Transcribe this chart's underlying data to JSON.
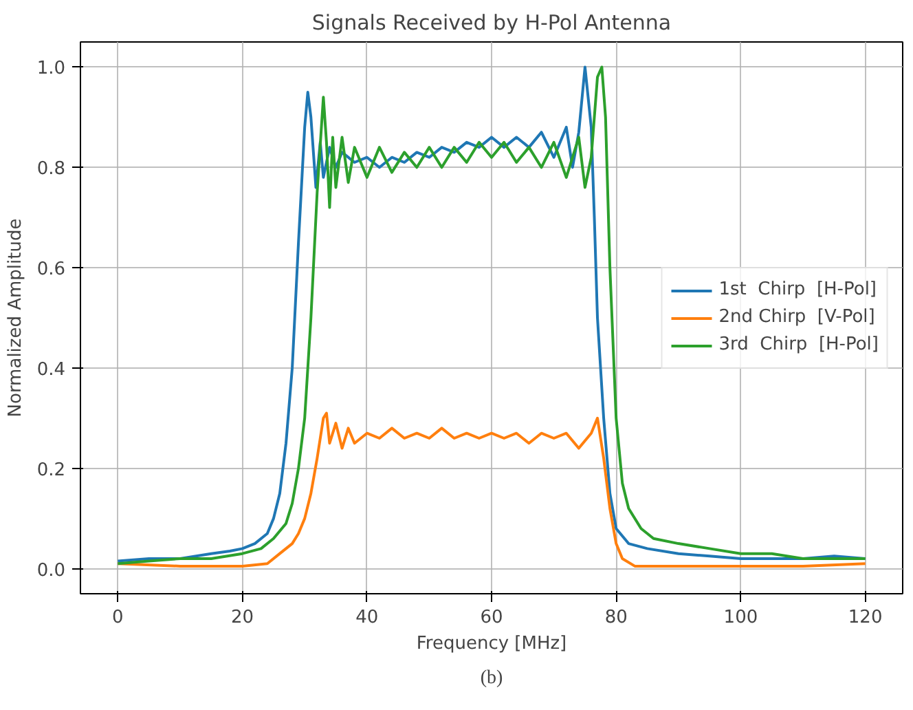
{
  "chart_data": {
    "type": "line",
    "title": "Signals Received by H-Pol Antenna",
    "xlabel": "Frequency [MHz]",
    "ylabel": "Normalized Amplitude",
    "annotations": [
      "(b)"
    ],
    "xlim": [
      -6,
      126
    ],
    "ylim": [
      -0.05,
      1.05
    ],
    "xticks": [
      0,
      20,
      40,
      60,
      80,
      100,
      120
    ],
    "yticks": [
      {
        "value": 0,
        "label": "0.0"
      },
      {
        "value": 0.2,
        "label": "0.2"
      },
      {
        "value": 0.4,
        "label": "0.4"
      },
      {
        "value": 0.6,
        "label": "0.6"
      },
      {
        "value": 0.8,
        "label": "0.8"
      },
      {
        "value": 1,
        "label": "1.0"
      }
    ],
    "grid": true,
    "legend": "right",
    "line_style": "solid",
    "marker": "none",
    "series": [
      {
        "name": "1st  Chirp  [H-Pol]",
        "color": "#1f77b4",
        "x": [
          0,
          5,
          10,
          15,
          18,
          20,
          22,
          24,
          25,
          26,
          27,
          28,
          29,
          30,
          30.5,
          31,
          31.8,
          32.5,
          33,
          34,
          35,
          36,
          38,
          40,
          42,
          44,
          46,
          48,
          50,
          52,
          54,
          56,
          58,
          60,
          62,
          64,
          66,
          68,
          70,
          72,
          73,
          74,
          75,
          76,
          76.5,
          77,
          78,
          79,
          80,
          82,
          85,
          90,
          95,
          100,
          105,
          110,
          115,
          120
        ],
        "values": [
          0.015,
          0.02,
          0.02,
          0.03,
          0.035,
          0.04,
          0.05,
          0.07,
          0.1,
          0.15,
          0.25,
          0.4,
          0.65,
          0.88,
          0.95,
          0.9,
          0.76,
          0.85,
          0.78,
          0.84,
          0.8,
          0.83,
          0.81,
          0.82,
          0.8,
          0.82,
          0.81,
          0.83,
          0.82,
          0.84,
          0.83,
          0.85,
          0.84,
          0.86,
          0.84,
          0.86,
          0.84,
          0.87,
          0.82,
          0.88,
          0.8,
          0.87,
          1.0,
          0.88,
          0.7,
          0.5,
          0.3,
          0.15,
          0.08,
          0.05,
          0.04,
          0.03,
          0.025,
          0.02,
          0.02,
          0.02,
          0.025,
          0.02
        ]
      },
      {
        "name": "2nd Chirp  [V-Pol]",
        "color": "#ff7f0e",
        "x": [
          0,
          10,
          20,
          24,
          26,
          28,
          29,
          30,
          31,
          32,
          33,
          33.5,
          34,
          35,
          36,
          37,
          38,
          40,
          42,
          44,
          46,
          48,
          50,
          52,
          54,
          56,
          58,
          60,
          62,
          64,
          66,
          68,
          70,
          72,
          74,
          76,
          77,
          78,
          79,
          80,
          81,
          83,
          90,
          100,
          110,
          120
        ],
        "values": [
          0.01,
          0.005,
          0.005,
          0.01,
          0.03,
          0.05,
          0.07,
          0.1,
          0.15,
          0.22,
          0.3,
          0.31,
          0.25,
          0.29,
          0.24,
          0.28,
          0.25,
          0.27,
          0.26,
          0.28,
          0.26,
          0.27,
          0.26,
          0.28,
          0.26,
          0.27,
          0.26,
          0.27,
          0.26,
          0.27,
          0.25,
          0.27,
          0.26,
          0.27,
          0.24,
          0.27,
          0.3,
          0.22,
          0.12,
          0.05,
          0.02,
          0.005,
          0.005,
          0.005,
          0.005,
          0.01
        ]
      },
      {
        "name": "3rd  Chirp  [H-Pol]",
        "color": "#2ca02c",
        "x": [
          0,
          5,
          10,
          15,
          20,
          23,
          25,
          27,
          28,
          29,
          30,
          31,
          32,
          33,
          33.5,
          34,
          34.5,
          35,
          36,
          37,
          38,
          40,
          42,
          44,
          46,
          48,
          50,
          52,
          54,
          56,
          58,
          60,
          62,
          64,
          66,
          68,
          70,
          72,
          74,
          75,
          76,
          77,
          77.7,
          78.3,
          79,
          80,
          81,
          82,
          84,
          86,
          90,
          95,
          100,
          105,
          110,
          115,
          120
        ],
        "values": [
          0.01,
          0.015,
          0.02,
          0.02,
          0.03,
          0.04,
          0.06,
          0.09,
          0.13,
          0.2,
          0.3,
          0.5,
          0.75,
          0.94,
          0.85,
          0.72,
          0.86,
          0.76,
          0.86,
          0.77,
          0.84,
          0.78,
          0.84,
          0.79,
          0.83,
          0.8,
          0.84,
          0.8,
          0.84,
          0.81,
          0.85,
          0.82,
          0.85,
          0.81,
          0.84,
          0.8,
          0.85,
          0.78,
          0.86,
          0.76,
          0.82,
          0.98,
          1.0,
          0.9,
          0.6,
          0.3,
          0.17,
          0.12,
          0.08,
          0.06,
          0.05,
          0.04,
          0.03,
          0.03,
          0.02,
          0.02,
          0.02
        ]
      }
    ]
  }
}
